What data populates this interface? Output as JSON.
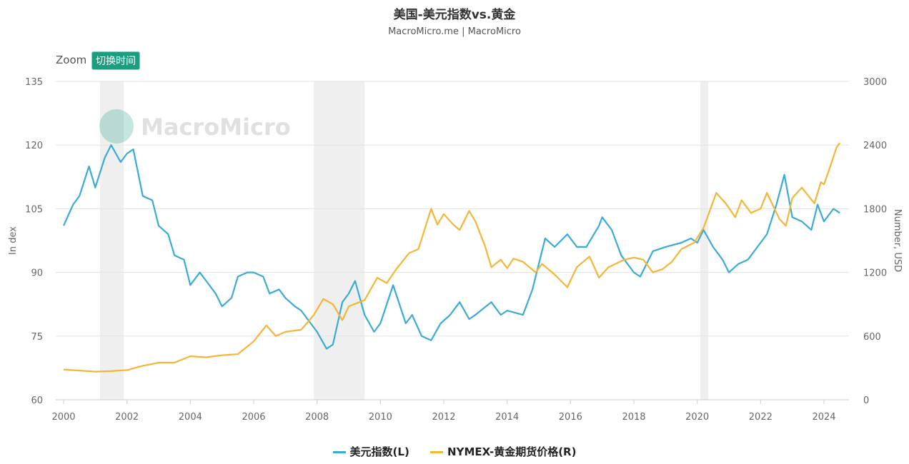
{
  "title": "美国-美元指数vs.黄金",
  "subtitle": "MacroMicro.me | MacroMicro",
  "zoom": {
    "label": "Zoom",
    "button": "切换时间"
  },
  "watermark": "MacroMicro",
  "chart_data": {
    "type": "line",
    "title": "美国-美元指数vs.黄金",
    "ylabel_left": "In dex",
    "ylabel_right": "Number, USD",
    "xlim": [
      2000,
      2024.6
    ],
    "x_ticks": [
      "2000",
      "2002",
      "2004",
      "2006",
      "2008",
      "2010",
      "2012",
      "2014",
      "2016",
      "2018",
      "2020",
      "2022",
      "2024"
    ],
    "ylim_left": [
      60,
      135
    ],
    "y_ticks_left": [
      "60",
      "75",
      "90",
      "105",
      "120",
      "135"
    ],
    "ylim_right": [
      0,
      3000
    ],
    "y_ticks_right": [
      "0",
      "600",
      "1200",
      "1800",
      "2400",
      "3000"
    ],
    "grid": true,
    "legend_position": "bottom",
    "shaded_periods": [
      [
        2001.15,
        2001.9
      ],
      [
        2007.9,
        2009.5
      ],
      [
        2020.1,
        2020.35
      ]
    ],
    "series": [
      {
        "name": "美元指数(L)",
        "axis": "left",
        "color": "#3aabd6",
        "x": [
          2000.0,
          2000.3,
          2000.5,
          2000.8,
          2001.0,
          2001.3,
          2001.5,
          2001.8,
          2002.0,
          2002.2,
          2002.5,
          2002.8,
          2003.0,
          2003.3,
          2003.5,
          2003.8,
          2004.0,
          2004.3,
          2004.5,
          2004.8,
          2005.0,
          2005.3,
          2005.5,
          2005.8,
          2006.0,
          2006.3,
          2006.5,
          2006.8,
          2007.0,
          2007.3,
          2007.5,
          2007.8,
          2008.0,
          2008.3,
          2008.5,
          2008.8,
          2009.0,
          2009.2,
          2009.5,
          2009.8,
          2010.0,
          2010.4,
          2010.8,
          2011.0,
          2011.3,
          2011.6,
          2011.9,
          2012.2,
          2012.5,
          2012.8,
          2013.0,
          2013.5,
          2013.8,
          2014.0,
          2014.5,
          2014.8,
          2015.0,
          2015.2,
          2015.5,
          2015.9,
          2016.2,
          2016.5,
          2016.9,
          2017.0,
          2017.3,
          2017.6,
          2018.0,
          2018.2,
          2018.6,
          2019.0,
          2019.5,
          2019.8,
          2020.0,
          2020.2,
          2020.5,
          2020.8,
          2021.0,
          2021.3,
          2021.6,
          2021.9,
          2022.2,
          2022.5,
          2022.75,
          2023.0,
          2023.3,
          2023.6,
          2023.8,
          2024.0,
          2024.3,
          2024.5
        ],
        "values": [
          101,
          106,
          108,
          115,
          110,
          117,
          120,
          116,
          118,
          119,
          108,
          107,
          101,
          99,
          94,
          93,
          87,
          90,
          88,
          85,
          82,
          84,
          89,
          90,
          90,
          89,
          85,
          86,
          84,
          82,
          81,
          78,
          76,
          72,
          73,
          83,
          85,
          88,
          80,
          76,
          78,
          87,
          78,
          80,
          75,
          74,
          78,
          80,
          83,
          79,
          80,
          83,
          80,
          81,
          80,
          86,
          92,
          98,
          96,
          99,
          96,
          96,
          101,
          103,
          100,
          94,
          90,
          89,
          95,
          96,
          97,
          98,
          97,
          100,
          96,
          93,
          90,
          92,
          93,
          96,
          99,
          106,
          113,
          103,
          102,
          100,
          106,
          102,
          105,
          104
        ]
      },
      {
        "name": "NYMEX-黄金期货价格(R)",
        "axis": "right",
        "color": "#f5b536",
        "x": [
          2000.0,
          2001.0,
          2001.5,
          2002.0,
          2002.5,
          2003.0,
          2003.5,
          2004.0,
          2004.5,
          2005.0,
          2005.5,
          2006.0,
          2006.4,
          2006.7,
          2007.0,
          2007.5,
          2007.9,
          2008.2,
          2008.5,
          2008.8,
          2009.0,
          2009.5,
          2009.9,
          2010.2,
          2010.5,
          2010.9,
          2011.2,
          2011.6,
          2011.8,
          2012.0,
          2012.3,
          2012.5,
          2012.8,
          2013.0,
          2013.3,
          2013.5,
          2013.8,
          2014.0,
          2014.2,
          2014.5,
          2014.9,
          2015.1,
          2015.5,
          2015.9,
          2016.2,
          2016.6,
          2016.9,
          2017.2,
          2017.7,
          2018.0,
          2018.3,
          2018.6,
          2018.9,
          2019.2,
          2019.5,
          2019.9,
          2020.2,
          2020.6,
          2020.9,
          2021.2,
          2021.4,
          2021.7,
          2022.0,
          2022.2,
          2022.6,
          2022.8,
          2023.0,
          2023.3,
          2023.7,
          2023.9,
          2024.0,
          2024.2,
          2024.4,
          2024.5
        ],
        "values": [
          285,
          265,
          270,
          280,
          320,
          350,
          350,
          410,
          400,
          420,
          430,
          550,
          700,
          600,
          640,
          660,
          800,
          950,
          900,
          750,
          880,
          940,
          1150,
          1100,
          1230,
          1380,
          1420,
          1800,
          1650,
          1750,
          1650,
          1600,
          1780,
          1680,
          1450,
          1250,
          1320,
          1240,
          1330,
          1300,
          1200,
          1280,
          1180,
          1060,
          1250,
          1350,
          1150,
          1250,
          1320,
          1340,
          1320,
          1200,
          1230,
          1300,
          1420,
          1480,
          1620,
          1950,
          1850,
          1720,
          1880,
          1760,
          1800,
          1950,
          1700,
          1640,
          1900,
          2000,
          1850,
          2050,
          2030,
          2200,
          2380,
          2420
        ]
      }
    ]
  }
}
